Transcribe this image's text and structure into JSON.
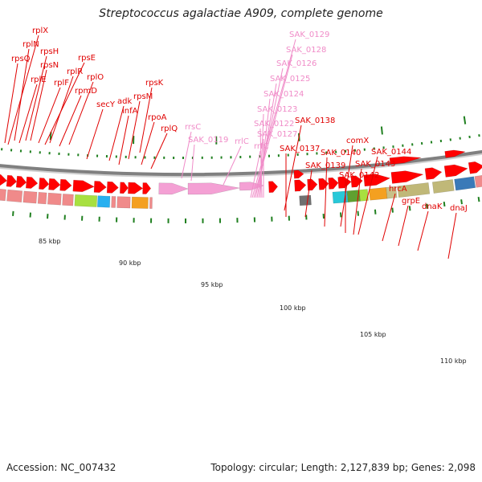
{
  "title": "Streptococcus agalactiae A909, complete genome",
  "accession_text": "Accession: NC_007432",
  "stats_text": "Topology: circular; Length: 2,127,839 bp; Genes: 2,098",
  "colors": {
    "red_label": "#e00000",
    "pink_label": "#f08cc8",
    "red_feature": "#ff0000",
    "salmon_feature": "#f08a8a",
    "pink_feature": "#f4a0d4",
    "tick_green": "#208020",
    "backbone": "#808080"
  },
  "kbp_labels": [
    "85 kbp",
    "90 kbp",
    "95 kbp",
    "100 kbp",
    "105 kbp",
    "110 kbp"
  ],
  "gene_labels": [
    {
      "text": "rplX",
      "type": "red"
    },
    {
      "text": "rplN",
      "type": "red"
    },
    {
      "text": "rpsQ",
      "type": "red"
    },
    {
      "text": "rpsH",
      "type": "red"
    },
    {
      "text": "rplE",
      "type": "red"
    },
    {
      "text": "rpsN",
      "type": "red"
    },
    {
      "text": "rpsE",
      "type": "red"
    },
    {
      "text": "rplR",
      "type": "red"
    },
    {
      "text": "rplF",
      "type": "red"
    },
    {
      "text": "rplO",
      "type": "red"
    },
    {
      "text": "rpmD",
      "type": "red"
    },
    {
      "text": "secY",
      "type": "red"
    },
    {
      "text": "adk",
      "type": "red"
    },
    {
      "text": "rpsK",
      "type": "red"
    },
    {
      "text": "rpsM",
      "type": "red"
    },
    {
      "text": "infA",
      "type": "red"
    },
    {
      "text": "rpoA",
      "type": "red"
    },
    {
      "text": "rplQ",
      "type": "red"
    },
    {
      "text": "rrsC",
      "type": "pink"
    },
    {
      "text": "SAK_0119",
      "type": "pink"
    },
    {
      "text": "rrlC",
      "type": "pink"
    },
    {
      "text": "rrfC",
      "type": "pink"
    },
    {
      "text": "SAK_0129",
      "type": "pink"
    },
    {
      "text": "SAK_0128",
      "type": "pink"
    },
    {
      "text": "SAK_0126",
      "type": "pink"
    },
    {
      "text": "SAK_0125",
      "type": "pink"
    },
    {
      "text": "SAK_0124",
      "type": "pink"
    },
    {
      "text": "SAK_0123",
      "type": "pink"
    },
    {
      "text": "SAK_0122",
      "type": "pink"
    },
    {
      "text": "SAK_0127",
      "type": "pink"
    },
    {
      "text": "SAK_0138",
      "type": "red"
    },
    {
      "text": "SAK_0137",
      "type": "red"
    },
    {
      "text": "SAK_0140",
      "type": "red"
    },
    {
      "text": "comX",
      "type": "red"
    },
    {
      "text": "SAK_0139",
      "type": "red"
    },
    {
      "text": "SAK_0144",
      "type": "red"
    },
    {
      "text": "SAK_0143",
      "type": "red"
    },
    {
      "text": "SAK_0142",
      "type": "red"
    },
    {
      "text": "hrcA",
      "type": "red"
    },
    {
      "text": "grpE",
      "type": "red"
    },
    {
      "text": "dnaK",
      "type": "red"
    },
    {
      "text": "dnaJ",
      "type": "red"
    }
  ]
}
